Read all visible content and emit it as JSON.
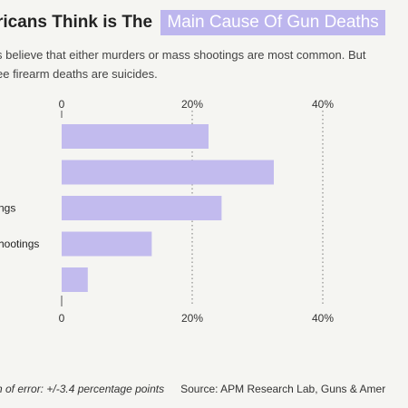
{
  "title": {
    "prefix": "ricans Think is The",
    "highlight": "Main Cause Of Gun Deaths"
  },
  "subtitle": {
    "line1": "s believe that either murders or mass shootings are most common. But",
    "line2": "ee firearm deaths are suicides."
  },
  "footer": {
    "margin_of_error": "n of error: +/-3.4 percentage points",
    "source": "Source: APM Research Lab, Guns & Amer"
  },
  "chart_data": {
    "type": "bar",
    "orientation": "horizontal",
    "categories": [
      "",
      "",
      "ngs",
      "hootings",
      ""
    ],
    "values": [
      22.5,
      32.5,
      24.5,
      13.8,
      4.0
    ],
    "xlim": [
      0,
      50
    ],
    "ticks": [
      0,
      20,
      40
    ],
    "tick_labels": [
      "0",
      "20%",
      "40%"
    ],
    "bar_color": "#c2bbee",
    "grid": "dotted vertical"
  }
}
